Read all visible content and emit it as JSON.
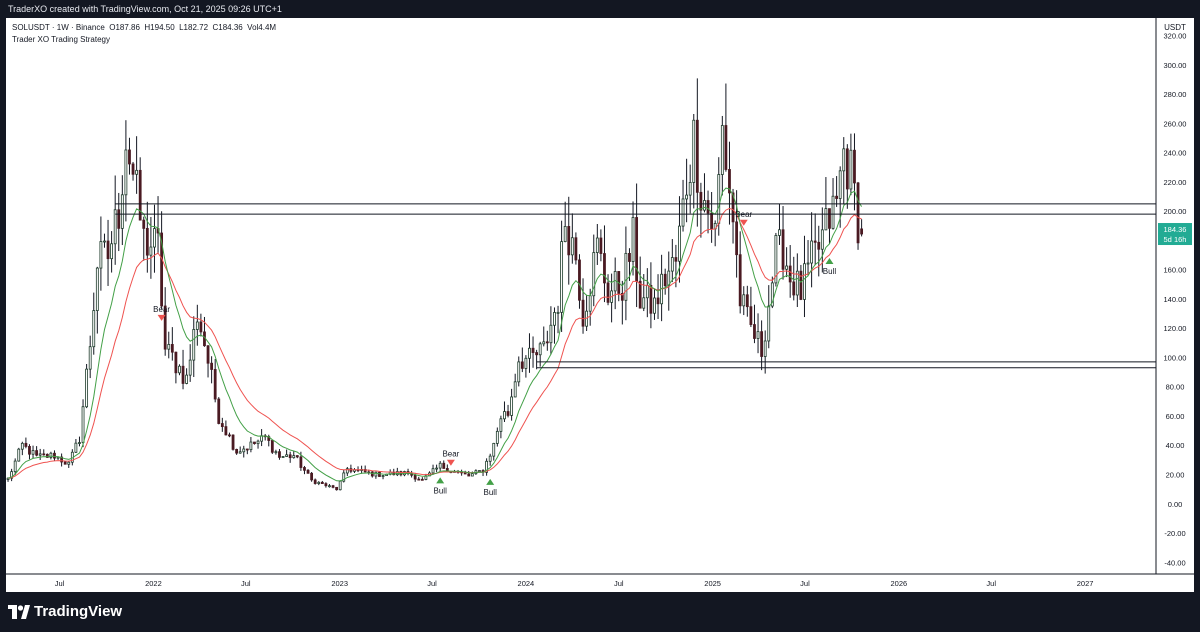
{
  "header": {
    "caption": "TraderXO created with TradingView.com, Oct 21, 2025 09:26 UTC+1"
  },
  "legend": {
    "symbol_line": "SOLUSDT · 1W · Binance",
    "open_label": "O",
    "open": "187.86",
    "high_label": "H",
    "high": "194.50",
    "low_label": "L",
    "low": "182.72",
    "close_label": "C",
    "close": "184.36",
    "vol_label": "Vol",
    "vol": "4.4M",
    "indicator": "Trader XO Trading Strategy"
  },
  "price_scale": {
    "unit": "USDT",
    "current_price": "184.36",
    "countdown": "5d 16h"
  },
  "footer": {
    "brand": "TradingView"
  },
  "colors": {
    "bull": "#1d3b2a",
    "bear": "#4a1a22",
    "fast_ema": "#43a047",
    "slow_ema": "#ef5350",
    "price_box": "#22ab94"
  },
  "chart_data": {
    "type": "candlestick",
    "ylim": [
      -40,
      320
    ],
    "yticks": [
      -40,
      -20,
      0,
      20,
      40,
      60,
      80,
      100,
      120,
      140,
      160,
      180,
      200,
      220,
      240,
      260,
      280,
      300,
      320
    ],
    "xlim": [
      "2021-03-18",
      "2027-05-20"
    ],
    "xticks": [
      {
        "label": "Jul",
        "date": "2021-07-01"
      },
      {
        "label": "2022",
        "date": "2022-01-01"
      },
      {
        "label": "Jul",
        "date": "2022-07-01"
      },
      {
        "label": "2023",
        "date": "2023-01-01"
      },
      {
        "label": "Jul",
        "date": "2023-07-01"
      },
      {
        "label": "2024",
        "date": "2024-01-01"
      },
      {
        "label": "Jul",
        "date": "2024-07-01"
      },
      {
        "label": "2025",
        "date": "2025-01-01"
      },
      {
        "label": "Jul",
        "date": "2025-07-01"
      },
      {
        "label": "2026",
        "date": "2026-01-01"
      },
      {
        "label": "Jul",
        "date": "2026-07-01"
      },
      {
        "label": "2027",
        "date": "2027-01-01"
      }
    ],
    "first_candle": "2021-03-22",
    "interval_days": 7,
    "anchors": [
      [
        "2021-03-22",
        17
      ],
      [
        "2021-04-19",
        40
      ],
      [
        "2021-05-17",
        32
      ],
      [
        "2021-06-21",
        33
      ],
      [
        "2021-07-19",
        27
      ],
      [
        "2021-08-09",
        45
      ],
      [
        "2021-08-30",
        110
      ],
      [
        "2021-09-13",
        165
      ],
      [
        "2021-10-04",
        170
      ],
      [
        "2021-10-25",
        200
      ],
      [
        "2021-11-08",
        250
      ],
      [
        "2021-11-22",
        225
      ],
      [
        "2021-12-13",
        180
      ],
      [
        "2022-01-10",
        175
      ],
      [
        "2022-01-24",
        105
      ],
      [
        "2022-02-07",
        100
      ],
      [
        "2022-03-07",
        85
      ],
      [
        "2022-03-28",
        130
      ],
      [
        "2022-04-11",
        110
      ],
      [
        "2022-05-09",
        60
      ],
      [
        "2022-06-13",
        36
      ],
      [
        "2022-07-11",
        40
      ],
      [
        "2022-08-08",
        45
      ],
      [
        "2022-09-05",
        32
      ],
      [
        "2022-10-03",
        33
      ],
      [
        "2022-11-07",
        16
      ],
      [
        "2022-12-26",
        10
      ],
      [
        "2023-01-16",
        24
      ],
      [
        "2023-03-13",
        20
      ],
      [
        "2023-05-15",
        21
      ],
      [
        "2023-06-12",
        16
      ],
      [
        "2023-07-17",
        26
      ],
      [
        "2023-08-14",
        22
      ],
      [
        "2023-09-11",
        19
      ],
      [
        "2023-10-09",
        23
      ],
      [
        "2023-10-30",
        40
      ],
      [
        "2023-11-13",
        60
      ],
      [
        "2023-11-27",
        62
      ],
      [
        "2023-12-18",
        100
      ],
      [
        "2024-01-08",
        98
      ],
      [
        "2024-02-05",
        105
      ],
      [
        "2024-03-04",
        140
      ],
      [
        "2024-03-18",
        195
      ],
      [
        "2024-04-08",
        170
      ],
      [
        "2024-04-22",
        130
      ],
      [
        "2024-05-20",
        175
      ],
      [
        "2024-06-10",
        145
      ],
      [
        "2024-07-08",
        150
      ],
      [
        "2024-07-29",
        180
      ],
      [
        "2024-08-12",
        140
      ],
      [
        "2024-09-09",
        135
      ],
      [
        "2024-09-30",
        155
      ],
      [
        "2024-10-21",
        165
      ],
      [
        "2024-11-11",
        220
      ],
      [
        "2024-11-25",
        250
      ],
      [
        "2024-12-09",
        215
      ],
      [
        "2025-01-06",
        185
      ],
      [
        "2025-01-20",
        255
      ],
      [
        "2025-02-10",
        195
      ],
      [
        "2025-02-24",
        140
      ],
      [
        "2025-03-10",
        125
      ],
      [
        "2025-04-07",
        105
      ],
      [
        "2025-05-05",
        170
      ],
      [
        "2025-05-19",
        175
      ],
      [
        "2025-06-02",
        155
      ],
      [
        "2025-06-23",
        145
      ],
      [
        "2025-07-14",
        165
      ],
      [
        "2025-07-28",
        175
      ],
      [
        "2025-08-18",
        195
      ],
      [
        "2025-09-01",
        205
      ],
      [
        "2025-09-15",
        240
      ],
      [
        "2025-09-29",
        225
      ],
      [
        "2025-10-13",
        195
      ],
      [
        "2025-10-20",
        184.36
      ]
    ],
    "last_bar": {
      "date": "2025-10-20",
      "open": 187.86,
      "high": 194.5,
      "low": 182.72,
      "close": 184.36
    },
    "horizontal_levels": [
      {
        "y": 205,
        "start": "2021-10-18"
      },
      {
        "y": 198,
        "start": "2021-10-18"
      },
      {
        "y": 97,
        "start": "2024-01-22"
      },
      {
        "y": 93,
        "start": "2024-01-22"
      }
    ],
    "signals": [
      {
        "type": "Bear",
        "date": "2022-01-17",
        "y": 125
      },
      {
        "type": "Bear",
        "date": "2023-08-07",
        "y": 26
      },
      {
        "type": "Bull",
        "date": "2023-07-17",
        "y": 18
      },
      {
        "type": "Bull",
        "date": "2023-10-23",
        "y": 17
      },
      {
        "type": "Bear",
        "date": "2025-03-03",
        "y": 190
      },
      {
        "type": "Bull",
        "date": "2025-08-18",
        "y": 168
      }
    ]
  }
}
